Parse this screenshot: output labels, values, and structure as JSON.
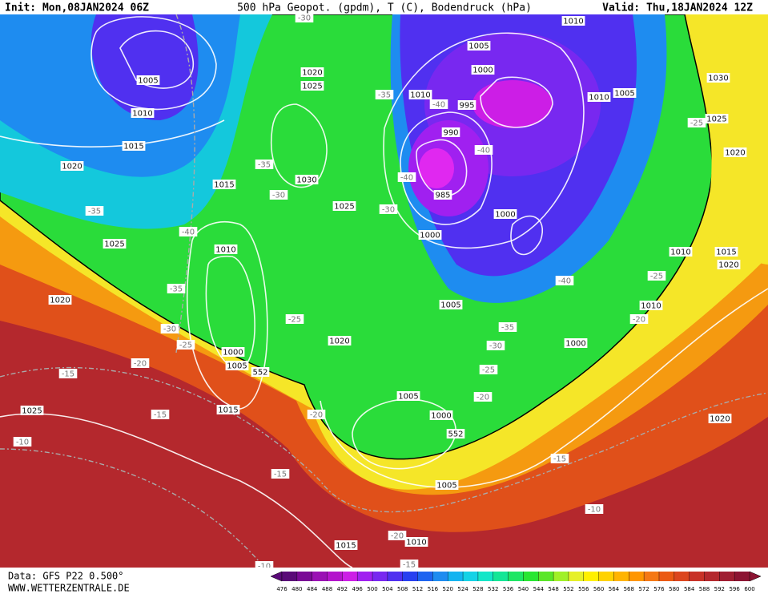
{
  "header": {
    "init": "Init: Mon,08JAN2024 06Z",
    "title": "500 hPa Geopot. (gpdm), T (C), Bodendruck (hPa)",
    "valid": "Valid: Thu,18JAN2024 12Z"
  },
  "footer": {
    "data": "Data: GFS P22 0.500°",
    "site": "WWW.WETTERZENTRALE.DE"
  },
  "map": {
    "labels": [
      "1005",
      "1010",
      "1015",
      "1020",
      "-35",
      "1025",
      "1020",
      "-15",
      "1025",
      "-10",
      "-20",
      "-15",
      "-25",
      "-30",
      "-35",
      "-40",
      "1010",
      "1015",
      "-35",
      "-30",
      "1030",
      "1025",
      "1020",
      "1025",
      "-30",
      "-35",
      "-30",
      "1010",
      "-40",
      "995",
      "990",
      "-40",
      "985",
      "-40",
      "1000",
      "1000",
      "1005",
      "1000",
      "1010",
      "1010",
      "1005",
      "-25",
      "1025",
      "1030",
      "1020",
      "1010",
      "1015",
      "1020",
      "-25",
      "-40",
      "1010",
      "-20",
      "1005",
      "-25",
      "1020",
      "1000",
      "1005",
      "552",
      "1015",
      "-20",
      "-35",
      "-30",
      "-25",
      "1000",
      "1005",
      "-20",
      "1000",
      "552",
      "-15",
      "-15",
      "1005",
      "1020",
      "-10",
      "-20",
      "1010",
      "1015",
      "-15",
      "-10"
    ]
  },
  "colorbar": {
    "ticks": [
      476,
      480,
      484,
      488,
      492,
      496,
      500,
      504,
      508,
      512,
      516,
      520,
      524,
      528,
      532,
      536,
      540,
      544,
      548,
      552,
      556,
      560,
      564,
      568,
      572,
      576,
      580,
      584,
      588,
      592,
      596,
      600
    ],
    "colors": [
      "#5a0a78",
      "#7a0a96",
      "#9a10b4",
      "#b414cc",
      "#cc1ee6",
      "#a020f0",
      "#7828f0",
      "#5030f0",
      "#2840f0",
      "#1e64f0",
      "#1e8cf0",
      "#14b4f0",
      "#14d2e6",
      "#14e6c8",
      "#14e696",
      "#1ee664",
      "#28e632",
      "#5ae628",
      "#a0f028",
      "#e6f028",
      "#fff000",
      "#ffd200",
      "#ffb400",
      "#ff9600",
      "#f57814",
      "#eb5a14",
      "#dc461e",
      "#c83228",
      "#b4282d",
      "#a01e32",
      "#8c1432"
    ]
  }
}
